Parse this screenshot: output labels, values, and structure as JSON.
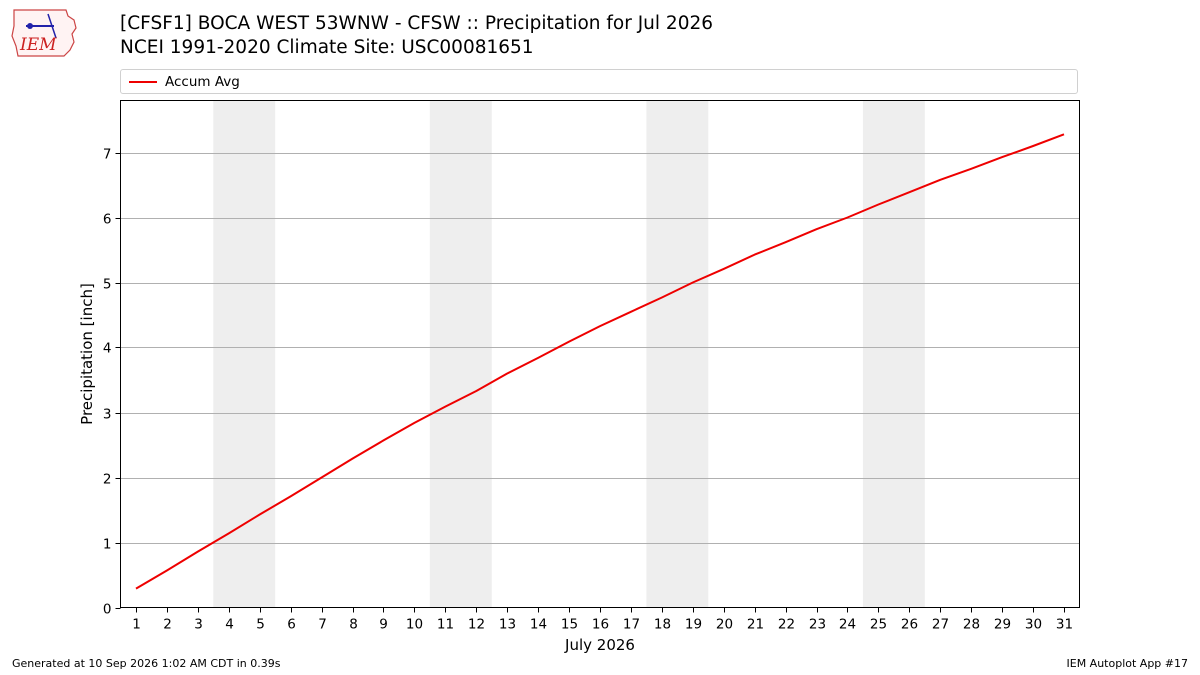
{
  "header": {
    "logo_text": "IEM",
    "title_line1": "[CFSF1] BOCA WEST 53WNW - CFSW :: Precipitation for Jul 2026",
    "title_line2": "NCEI 1991-2020 Climate Site: USC00081651"
  },
  "footer": {
    "generated": "Generated at 10 Sep 2026 1:02 AM CDT in 0.39s",
    "app": "IEM Autoplot App #17"
  },
  "colors": {
    "series": "#ee0000",
    "weekend_shade": "#eeeeee",
    "grid": "#b0b0b0"
  },
  "chart_data": {
    "type": "line",
    "xlabel": "July 2026",
    "ylabel": "Precipitation [inch]",
    "xlim": [
      0.5,
      31.5
    ],
    "ylim": [
      0,
      7.8
    ],
    "x": [
      1,
      2,
      3,
      4,
      5,
      6,
      7,
      8,
      9,
      10,
      11,
      12,
      13,
      14,
      15,
      16,
      17,
      18,
      19,
      20,
      21,
      22,
      23,
      24,
      25,
      26,
      27,
      28,
      29,
      30,
      31
    ],
    "x_tick_labels": [
      "1",
      "2",
      "3",
      "4",
      "5",
      "6",
      "7",
      "8",
      "9",
      "10",
      "11",
      "12",
      "13",
      "14",
      "15",
      "16",
      "17",
      "18",
      "19",
      "20",
      "21",
      "22",
      "23",
      "24",
      "25",
      "26",
      "27",
      "28",
      "29",
      "30",
      "31"
    ],
    "y_ticks": [
      0,
      1,
      2,
      3,
      4,
      5,
      6,
      7
    ],
    "y_tick_labels": [
      "0",
      "1",
      "2",
      "3",
      "4",
      "5",
      "6",
      "7"
    ],
    "grid": "horizontal",
    "legend_position": "top",
    "shaded_x_ranges": [
      [
        3.5,
        5.5
      ],
      [
        10.5,
        12.5
      ],
      [
        17.5,
        19.5
      ],
      [
        24.5,
        26.5
      ]
    ],
    "series": [
      {
        "name": "Accum Avg",
        "values": [
          0.29,
          0.57,
          0.86,
          1.14,
          1.43,
          1.71,
          2.0,
          2.29,
          2.57,
          2.84,
          3.09,
          3.33,
          3.6,
          3.84,
          4.09,
          4.33,
          4.55,
          4.77,
          5.0,
          5.21,
          5.43,
          5.62,
          5.82,
          6.0,
          6.2,
          6.39,
          6.58,
          6.75,
          6.93,
          7.1,
          7.28
        ]
      }
    ]
  }
}
